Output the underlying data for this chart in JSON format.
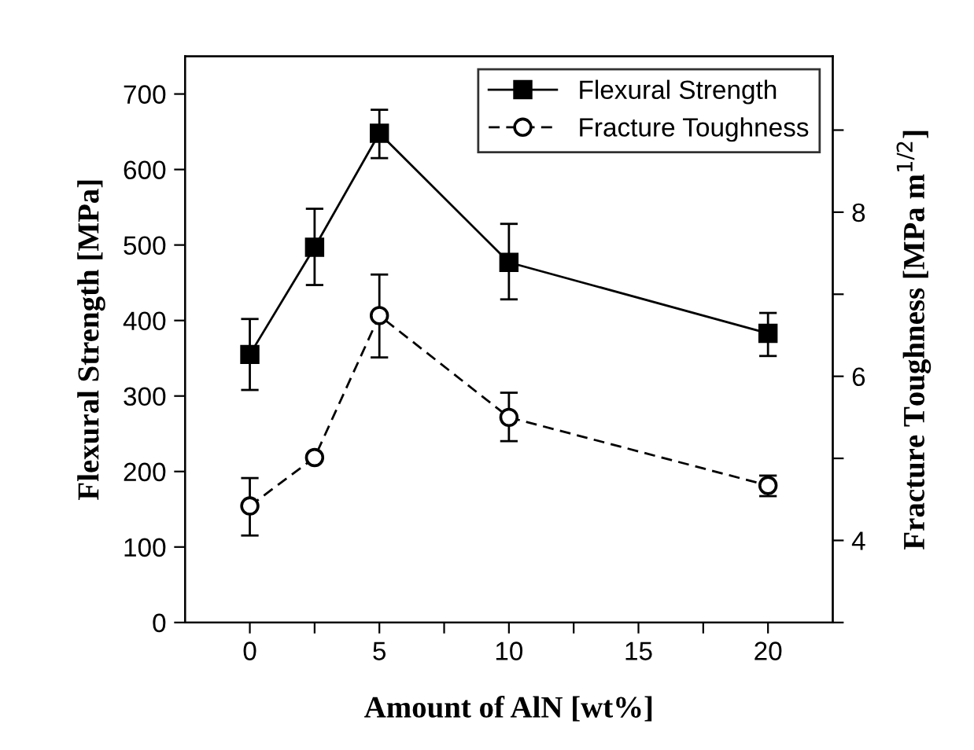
{
  "chart_data": {
    "type": "line",
    "xlabel": "Amount of AlN [wt%]",
    "ylabel": "Flexural Strength [MPa]",
    "y2label": "Fracture Toughness [MPa m$^{1/2}$]",
    "x": [
      0,
      2.5,
      5,
      10,
      20
    ],
    "xlim": [
      -2.5,
      22.5
    ],
    "xticks": [
      0,
      {
        "value": 2.5,
        "label": null
      },
      5,
      {
        "value": 7.5,
        "label": null
      },
      10,
      {
        "value": 12.5,
        "label": null
      },
      15,
      {
        "value": 17.5,
        "label": null
      },
      20
    ],
    "ylim": [
      0,
      750
    ],
    "yticks": [
      0,
      100,
      200,
      300,
      400,
      500,
      600,
      700
    ],
    "y2lim": [
      3,
      9.9
    ],
    "y2ticks": [
      {
        "value": 3,
        "label": null
      },
      4,
      {
        "value": 5,
        "label": null
      },
      6,
      {
        "value": 7,
        "label": null
      },
      8,
      {
        "value": 9,
        "label": null
      }
    ],
    "legend": "top right",
    "grid": false,
    "series": [
      {
        "name": "Flexural Strength",
        "color": "#000000",
        "marker": "square",
        "line_style": "solid",
        "values": [
          355,
          497,
          648,
          477,
          383
        ],
        "errors": [
          [
            308,
            402
          ],
          [
            447,
            548
          ],
          [
            615,
            679
          ],
          [
            428,
            528
          ],
          [
            353,
            410
          ]
        ]
      },
      {
        "name": "Fracture Toughness",
        "color": "#000000",
        "marker": "circle",
        "line_style": "dashed",
        "axis": "y2",
        "values": [
          4.42,
          5.01,
          6.74,
          5.5,
          4.67
        ],
        "errors": [
          [
            4.06,
            4.76
          ],
          null,
          [
            6.23,
            7.24
          ],
          [
            5.21,
            5.8
          ],
          [
            4.54,
            4.79
          ]
        ]
      }
    ]
  }
}
